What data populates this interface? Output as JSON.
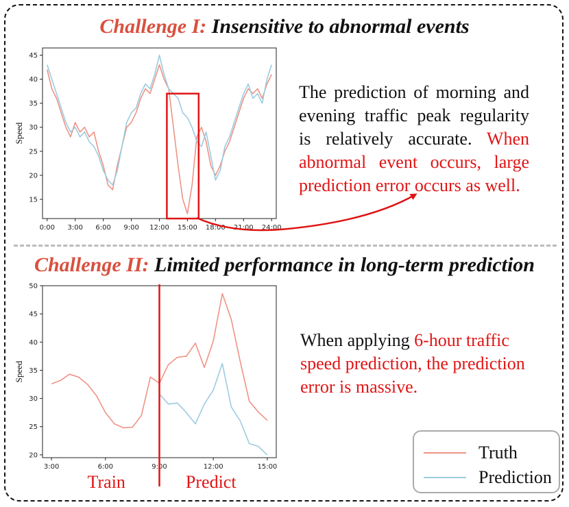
{
  "headings": {
    "top": {
      "accent": "Challenge I:",
      "rest": " Insensitive to abnormal events"
    },
    "bottom": {
      "accent": "Challenge II:",
      "rest": " Limited performance in long-term prediction"
    }
  },
  "descriptions": {
    "top": {
      "normal": "The prediction of morning and evening traffic peak regularity is relatively accurate. ",
      "highlight": "When abnormal event occurs, large prediction error occurs as well."
    },
    "bottom": {
      "normal": "When applying ",
      "highlight": "6-hour traffic speed prediction, the prediction error is massive."
    }
  },
  "legend": {
    "truth": "Truth",
    "prediction": "Prediction"
  },
  "colors": {
    "truth": "#ee9385",
    "prediction": "#9ccbe0",
    "accent": "#d9503f",
    "highlight": "#e01414"
  },
  "chart_data": [
    {
      "type": "line",
      "xlabel": "",
      "ylabel": "Speed",
      "xlim": [
        -0.5,
        24.5
      ],
      "ylim": [
        11,
        46.5
      ],
      "x_ticks": [
        "0:00",
        "3:00",
        "6:00",
        "9:00",
        "12:00",
        "15:00",
        "18:00",
        "21:00",
        "24:00"
      ],
      "y_ticks": [
        "15",
        "20",
        "25",
        "30",
        "35",
        "40",
        "45"
      ],
      "x_hours": [
        0,
        0.5,
        1,
        1.5,
        2,
        2.5,
        3,
        3.5,
        4,
        4.5,
        5,
        5.5,
        6,
        6.5,
        7,
        7.5,
        8,
        8.5,
        9,
        9.5,
        10,
        10.5,
        11,
        11.5,
        12,
        12.5,
        13,
        13.5,
        14,
        14.5,
        15,
        15.5,
        16,
        16.5,
        17,
        17.5,
        18,
        18.5,
        19,
        19.5,
        20,
        20.5,
        21,
        21.5,
        22,
        22.5,
        23,
        23.5,
        24
      ],
      "series": [
        {
          "name": "Truth",
          "values": [
            42,
            38,
            36,
            33,
            30,
            28,
            31,
            29,
            30,
            28,
            29,
            25,
            22,
            18,
            17,
            22,
            26,
            30,
            31,
            33,
            36,
            38,
            37,
            40,
            43,
            40,
            38,
            30,
            22,
            15,
            12,
            18,
            28,
            30,
            27,
            22,
            20,
            22,
            25,
            27,
            30,
            33,
            36,
            38,
            37,
            38,
            36,
            39,
            41
          ]
        },
        {
          "name": "Prediction",
          "values": [
            43,
            40,
            37,
            34,
            31,
            29,
            30,
            28,
            29,
            27,
            26,
            24,
            21,
            19,
            18,
            21,
            26,
            31,
            33,
            34,
            37,
            39,
            38,
            41,
            45,
            41,
            38,
            37,
            36,
            33,
            32,
            30,
            27,
            26,
            29,
            24,
            19,
            21,
            26,
            28,
            31,
            34,
            37,
            39,
            36,
            37,
            35,
            40,
            43
          ]
        }
      ],
      "annotation": {
        "type": "box",
        "x_range": [
          12.8,
          16.2
        ],
        "y_range": [
          11,
          37
        ]
      }
    },
    {
      "type": "line",
      "xlabel": "",
      "ylabel": "Speed",
      "xlim": [
        2.5,
        15.5
      ],
      "ylim": [
        19.5,
        50
      ],
      "x_ticks": [
        "3:00",
        "6:00",
        "9:00",
        "12:00",
        "15:00"
      ],
      "y_ticks": [
        "20",
        "25",
        "30",
        "35",
        "40",
        "45",
        "50"
      ],
      "split_hour": 9,
      "region_labels": {
        "left": "Train",
        "right": "Predict"
      },
      "x_hours": [
        3,
        3.5,
        4,
        4.5,
        5,
        5.5,
        6,
        6.5,
        7,
        7.5,
        8,
        8.5,
        9,
        9.5,
        10,
        10.5,
        11,
        11.5,
        12,
        12.5,
        13,
        13.5,
        14,
        14.5,
        15
      ],
      "series": [
        {
          "name": "Truth",
          "values": [
            32.6,
            33.2,
            34.3,
            33.8,
            32.5,
            30.5,
            27.5,
            25.5,
            24.8,
            24.9,
            27.0,
            33.8,
            32.7,
            36.0,
            37.3,
            37.5,
            39.8,
            35.5,
            40.2,
            48.6,
            44.0,
            36.5,
            29.5,
            27.6,
            26.1
          ]
        },
        {
          "name": "Prediction",
          "values": [
            null,
            null,
            null,
            null,
            null,
            null,
            null,
            null,
            null,
            null,
            null,
            null,
            30.8,
            29.0,
            29.2,
            27.5,
            25.5,
            29.0,
            31.5,
            36.2,
            28.5,
            26.0,
            22.0,
            21.5,
            20.0
          ]
        }
      ]
    }
  ]
}
